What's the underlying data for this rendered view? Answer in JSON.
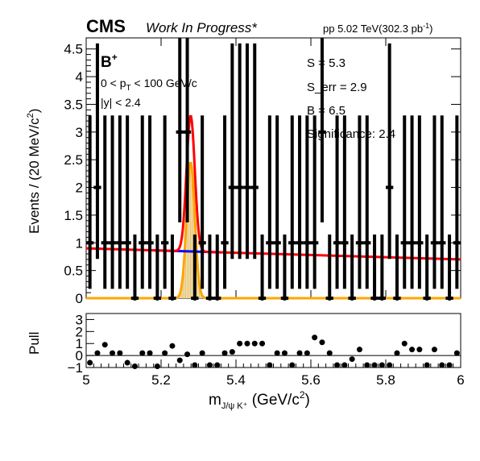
{
  "header": {
    "experiment": "CMS",
    "status": "Work In Progress*",
    "energy_prefix": "pp 5.02 TeV(302.3 pb",
    "energy_sup": "-1",
    "energy_suffix": ")"
  },
  "annotations": {
    "particle": "B",
    "particle_sup": "+",
    "pt_left": "0 < p",
    "pt_sub": "T",
    "pt_right": " < 100 GeV/c",
    "y_cut": "|y| < 2.4",
    "signal": "S = 5.3",
    "signal_err": "S_err = 2.9",
    "background": "B = 6.5",
    "significance": "Significance: 2.4"
  },
  "axes": {
    "ylabel_main": "Events / (20 MeV/c",
    "ylabel_main_sup": "2",
    "ylabel_main_end": ")",
    "ylabel_pull": "Pull",
    "xlabel_m": "m",
    "xlabel_sub": "J/ψ K⁺",
    "xlabel_rest": " (GeV/c",
    "xlabel_sup": "2",
    "xlabel_end": ")"
  },
  "colors": {
    "total_fit": "#ff0000",
    "background_fit": "#0000ff",
    "signal_fill": "#f5e6b8",
    "signal_line": "#ffa500",
    "data": "#000000"
  },
  "chart_data": [
    {
      "type": "scatter",
      "x_unit": "GeV/c^2",
      "xlim": [
        5.0,
        6.0
      ],
      "ylim": [
        0,
        4.7
      ],
      "yticks": [
        0,
        0.5,
        1,
        1.5,
        2,
        2.5,
        3,
        3.5,
        4,
        4.5
      ],
      "ytick_labels": [
        "0",
        "0.5",
        "1",
        "1.5",
        "2",
        "2.5",
        "3",
        "3.5",
        "4",
        "4.5"
      ],
      "bin_width": 0.02,
      "x": [
        5.01,
        5.03,
        5.05,
        5.07,
        5.09,
        5.11,
        5.13,
        5.15,
        5.17,
        5.19,
        5.21,
        5.23,
        5.25,
        5.27,
        5.29,
        5.31,
        5.33,
        5.35,
        5.37,
        5.39,
        5.41,
        5.43,
        5.45,
        5.47,
        5.49,
        5.51,
        5.53,
        5.55,
        5.57,
        5.59,
        5.61,
        5.63,
        5.65,
        5.67,
        5.69,
        5.71,
        5.73,
        5.75,
        5.77,
        5.79,
        5.81,
        5.83,
        5.85,
        5.87,
        5.89,
        5.91,
        5.93,
        5.95,
        5.97,
        5.99
      ],
      "y": [
        1,
        2,
        1,
        1,
        1,
        1,
        0,
        1,
        1,
        0,
        1,
        0,
        3,
        3,
        0,
        1,
        0,
        0,
        1,
        2,
        2,
        2,
        2,
        0,
        1,
        1,
        0,
        1,
        1,
        1,
        1,
        3,
        0,
        1,
        1,
        0,
        1,
        1,
        0,
        0,
        2,
        0,
        1,
        1,
        1,
        0,
        1,
        1,
        0,
        1
      ],
      "y_err_high": [
        2.3,
        2.6,
        2.3,
        2.3,
        2.3,
        2.3,
        1.15,
        2.3,
        2.3,
        1.15,
        2.3,
        1.15,
        3.1,
        3.1,
        1.15,
        2.3,
        1.15,
        1.15,
        2.3,
        2.6,
        2.6,
        2.6,
        2.6,
        1.15,
        2.3,
        2.3,
        1.15,
        2.3,
        2.3,
        2.3,
        2.3,
        3.1,
        1.15,
        2.3,
        2.3,
        1.15,
        2.3,
        2.3,
        1.15,
        1.15,
        2.6,
        1.15,
        2.3,
        2.3,
        2.3,
        1.15,
        2.3,
        2.3,
        1.15,
        2.3
      ],
      "y_err_low": [
        0.83,
        1.29,
        0.83,
        0.83,
        0.83,
        0.83,
        0,
        0.83,
        0.83,
        0,
        0.83,
        0,
        1.63,
        1.63,
        0,
        0.83,
        0,
        0,
        0.83,
        1.29,
        1.29,
        1.29,
        1.29,
        0,
        0.83,
        0.83,
        0,
        0.83,
        0.83,
        0.83,
        0.83,
        1.63,
        0,
        0.83,
        0.83,
        0,
        0.83,
        0.83,
        0,
        0,
        1.29,
        0,
        0.83,
        0.83,
        0.83,
        0,
        0.83,
        0.83,
        0,
        0.83
      ],
      "fit": {
        "signal_mean": 5.279,
        "signal_sigma": 0.011,
        "signal_peak": 2.45,
        "background_start": 0.9,
        "background_end": 0.7
      }
    },
    {
      "type": "scatter",
      "series_kind": "pull",
      "xlim": [
        5.0,
        6.0
      ],
      "ylim": [
        -1,
        3.5
      ],
      "yticks": [
        -1,
        0,
        1,
        2,
        3
      ],
      "ytick_labels": [
        "−1",
        "0",
        "1",
        "2",
        "3"
      ],
      "xticks": [
        5.0,
        5.2,
        5.4,
        5.6,
        5.8,
        6.0
      ],
      "xtick_labels": [
        "5",
        "5.2",
        "5.4",
        "5.6",
        "5.8",
        "6"
      ],
      "x": [
        5.01,
        5.03,
        5.05,
        5.07,
        5.09,
        5.11,
        5.13,
        5.15,
        5.17,
        5.19,
        5.21,
        5.23,
        5.25,
        5.27,
        5.29,
        5.31,
        5.33,
        5.35,
        5.37,
        5.39,
        5.41,
        5.43,
        5.45,
        5.47,
        5.49,
        5.51,
        5.53,
        5.55,
        5.57,
        5.59,
        5.61,
        5.63,
        5.65,
        5.67,
        5.69,
        5.71,
        5.73,
        5.75,
        5.77,
        5.79,
        5.81,
        5.83,
        5.85,
        5.87,
        5.89,
        5.91,
        5.93,
        5.95,
        5.97,
        5.99
      ],
      "y": [
        -0.6,
        0.2,
        0.9,
        0.2,
        0.2,
        -0.6,
        -0.9,
        0.2,
        0.2,
        -0.9,
        0.2,
        0.8,
        -0.4,
        0.1,
        -0.8,
        0.2,
        -0.8,
        -0.8,
        0.2,
        0.3,
        1.0,
        1.0,
        1.0,
        1.0,
        -0.8,
        0.2,
        0.2,
        -0.8,
        0.2,
        0.2,
        1.5,
        1.1,
        0.2,
        -0.8,
        -0.8,
        -0.3,
        0.5,
        -0.8,
        -0.8,
        -0.8,
        -0.8,
        0.2,
        1.0,
        0.5,
        0.5,
        -0.8,
        0.5,
        -0.8,
        -0.8,
        0.2
      ]
    }
  ]
}
